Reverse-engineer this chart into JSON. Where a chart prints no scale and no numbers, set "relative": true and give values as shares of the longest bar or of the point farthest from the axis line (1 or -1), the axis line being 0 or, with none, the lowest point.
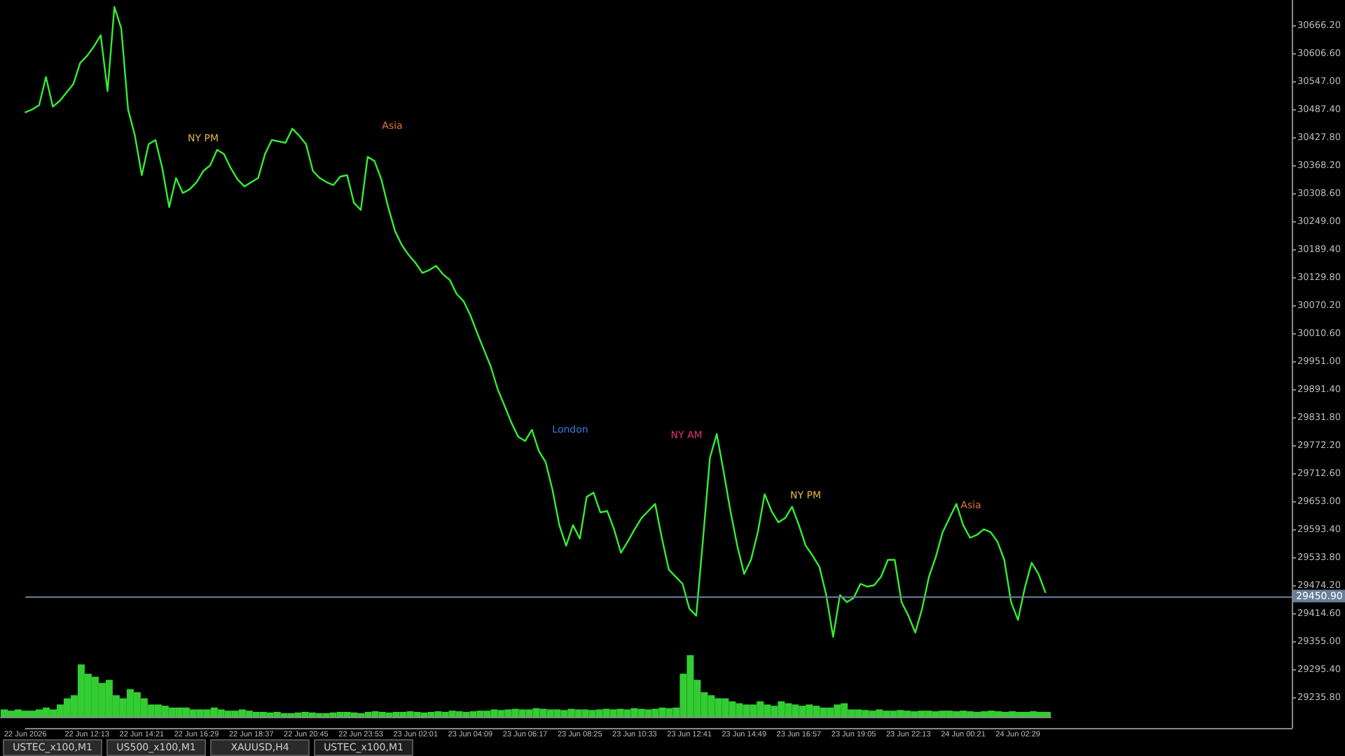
{
  "chart_data": [
    {
      "type": "line",
      "categories": [
        "22 Jun 2026",
        null,
        null,
        null,
        null,
        null,
        null,
        null,
        null,
        "22 Jun 12:13",
        null,
        null,
        null,
        null,
        null,
        null,
        null,
        "22 Jun 14:21",
        null,
        null,
        null,
        null,
        null,
        null,
        null,
        "22 Jun 16:29",
        null,
        null,
        null,
        null,
        null,
        null,
        null,
        "22 Jun 18:37",
        null,
        null,
        null,
        null,
        null,
        null,
        null,
        "22 Jun 20:45",
        null,
        null,
        null,
        null,
        null,
        null,
        null,
        "22 Jun 23:53",
        null,
        null,
        null,
        null,
        null,
        null,
        null,
        "23 Jun 02:01",
        null,
        null,
        null,
        null,
        null,
        null,
        null,
        "23 Jun 04:09",
        null,
        null,
        null,
        null,
        null,
        null,
        null,
        "23 Jun 06:17",
        null,
        null,
        null,
        null,
        null,
        null,
        null,
        "23 Jun 08:25",
        null,
        null,
        null,
        null,
        null,
        null,
        null,
        "23 Jun 10:33",
        null,
        null,
        null,
        null,
        null,
        null,
        null,
        "23 Jun 12:41",
        null,
        null,
        null,
        null,
        null,
        null,
        null,
        "23 Jun 14:49",
        null,
        null,
        null,
        null,
        null,
        null,
        null,
        "23 Jun 16:57",
        null,
        null,
        null,
        null,
        null,
        null,
        null,
        "23 Jun 19:05",
        null,
        null,
        null,
        null,
        null,
        null,
        null,
        "23 Jun 22:13",
        null,
        null,
        null,
        null,
        null,
        null,
        null,
        "24 Jun 00:21",
        null,
        null,
        null,
        null,
        null,
        null,
        null,
        "24 Jun 02:29",
        null,
        null,
        null,
        null,
        null,
        null,
        null,
        null,
        null,
        null,
        null,
        null,
        null,
        null,
        null,
        null,
        null,
        null,
        null,
        null,
        null,
        null,
        null,
        null,
        null,
        null,
        null,
        null,
        null,
        null,
        null,
        null,
        null,
        null,
        null,
        null,
        null,
        null,
        null,
        null
      ],
      "series": [
        {
          "color": "#33ee33",
          "values": [
            30481,
            30487,
            30496,
            30556,
            30493,
            30505,
            30523,
            30541,
            30586,
            30601,
            30621,
            30645,
            30526,
            30705,
            30660,
            30487,
            30431,
            30347,
            30413,
            30422,
            30362,
            30279,
            30341,
            30309,
            30317,
            30332,
            30356,
            30368,
            30401,
            30392,
            30362,
            30338,
            30323,
            30332,
            30341,
            30392,
            30422,
            30419,
            30416,
            30446,
            30431,
            30413,
            30356,
            30341,
            30332,
            30326,
            30344,
            30347,
            30288,
            30273,
            30386,
            30377,
            30338,
            30279,
            30228,
            30198,
            30177,
            30160,
            30139,
            30145,
            30154,
            30136,
            30124,
            30094,
            30079,
            30049,
            30011,
            29975,
            29939,
            29891,
            29856,
            29820,
            29790,
            29781,
            29805,
            29760,
            29736,
            29677,
            29602,
            29558,
            29602,
            29573,
            29662,
            29671,
            29629,
            29632,
            29593,
            29543,
            29567,
            29593,
            29617,
            29632,
            29647,
            29573,
            29507,
            29492,
            29477,
            29424,
            29409,
            29573,
            29745,
            29796,
            29716,
            29632,
            29558,
            29498,
            29528,
            29587,
            29668,
            29632,
            29608,
            29617,
            29641,
            29602,
            29558,
            29537,
            29513,
            29453,
            29364,
            29453,
            29438,
            29447,
            29477,
            29471,
            29474,
            29492,
            29528,
            29528,
            29438,
            29409,
            29373,
            29424,
            29492,
            29534,
            29587,
            29617,
            29647,
            29602,
            29575,
            29581,
            29593,
            29587,
            29567,
            29528,
            29438,
            29400,
            29468,
            29522,
            29498,
            29459,
            null,
            null,
            null,
            null,
            null,
            null,
            null,
            null,
            null,
            null,
            null,
            null,
            null,
            null,
            null,
            null,
            null,
            null,
            null,
            null,
            null,
            null,
            null,
            null,
            null,
            null,
            null,
            null,
            null,
            null,
            null,
            null,
            null,
            null,
            null,
            null
          ]
        }
      ],
      "ylim": [
        29170,
        30720
      ],
      "yticks": [
        {
          "value": 29235.8,
          "label": "29235.80"
        },
        {
          "value": 29295.4,
          "label": "29295.40"
        },
        {
          "value": 29355,
          "label": "29355.00"
        },
        {
          "value": 29414.6,
          "label": "29414.60"
        },
        {
          "value": 29474.2,
          "label": "29474.20"
        },
        {
          "value": 29533.8,
          "label": "29533.80"
        },
        {
          "value": 29593.4,
          "label": "29593.40"
        },
        {
          "value": 29653,
          "label": "29653.00"
        },
        {
          "value": 29712.6,
          "label": "29712.60"
        },
        {
          "value": 29772.2,
          "label": "29772.20"
        },
        {
          "value": 29831.8,
          "label": "29831.80"
        },
        {
          "value": 29891.4,
          "label": "29891.40"
        },
        {
          "value": 29951,
          "label": "29951.00"
        },
        {
          "value": 30010.6,
          "label": "30010.60"
        },
        {
          "value": 30070.2,
          "label": "30070.20"
        },
        {
          "value": 30129.8,
          "label": "30129.80"
        },
        {
          "value": 30189.4,
          "label": "30189.40"
        },
        {
          "value": 30249,
          "label": "30249.00"
        },
        {
          "value": 30308.6,
          "label": "30308.60"
        },
        {
          "value": 30368.2,
          "label": "30368.20"
        },
        {
          "value": 30427.8,
          "label": "30427.80"
        },
        {
          "value": 30487.4,
          "label": "30487.40"
        },
        {
          "value": 30547,
          "label": "30547.00"
        },
        {
          "value": 30606.6,
          "label": "30606.60"
        },
        {
          "value": 30666.2,
          "label": "30666.20"
        }
      ],
      "ref_lines": [
        {
          "axis": "y",
          "value": 29450.9,
          "label": "29450.90",
          "color": "#6a7f99"
        }
      ],
      "grid": false,
      "marker": "none",
      "line_style": "solid",
      "annotations": [
        "Asia",
        "London",
        "NY AM",
        "NY PM",
        "NY PM",
        "Asia",
        "USTEC_x100,M1",
        "US500_x100,M1",
        "XAUUSD,H4",
        "USTEC_x100,M1"
      ]
    },
    {
      "type": "bar",
      "relative": true,
      "color": "#33cc33",
      "categories": [
        null,
        null,
        null,
        null,
        null,
        null,
        null,
        null,
        null,
        null,
        null,
        null,
        null,
        null,
        null,
        null,
        null,
        null,
        null,
        null,
        null,
        null,
        null,
        null,
        null,
        null,
        null,
        null,
        null,
        null,
        null,
        null,
        null,
        null,
        null,
        null,
        null,
        null,
        null,
        null,
        null,
        null,
        null,
        null,
        null,
        null,
        null,
        null,
        null,
        null,
        null,
        null,
        null,
        null,
        null,
        null,
        null,
        null,
        null,
        null,
        null,
        null,
        null,
        null,
        null,
        null,
        null,
        null,
        null,
        null,
        null,
        null,
        null,
        null,
        null,
        null,
        null,
        null,
        null,
        null,
        null,
        null,
        null,
        null,
        null,
        null,
        null,
        null,
        null,
        null,
        null,
        null,
        null,
        null,
        null,
        null,
        null,
        null,
        null,
        null,
        null,
        null,
        null,
        null,
        null,
        null,
        null,
        null,
        null,
        null,
        null,
        null,
        null,
        null,
        null,
        null,
        null,
        null,
        null,
        null,
        null,
        null,
        null,
        null,
        null,
        null,
        null,
        null,
        null,
        null,
        null,
        null,
        null,
        null,
        null,
        null,
        null,
        null,
        null,
        null,
        null,
        null,
        null,
        null,
        null,
        null,
        null,
        null,
        null,
        null
      ],
      "values": [
        0.12,
        0.1,
        0.12,
        0.1,
        0.1,
        0.12,
        0.15,
        0.12,
        0.2,
        0.3,
        0.35,
        0.85,
        0.7,
        0.65,
        0.55,
        0.6,
        0.35,
        0.3,
        0.45,
        0.4,
        0.3,
        0.2,
        0.2,
        0.18,
        0.15,
        0.15,
        0.15,
        0.12,
        0.12,
        0.12,
        0.15,
        0.12,
        0.1,
        0.1,
        0.12,
        0.1,
        0.08,
        0.08,
        0.07,
        0.08,
        0.06,
        0.06,
        0.07,
        0.08,
        0.07,
        0.06,
        0.06,
        0.07,
        0.08,
        0.08,
        0.07,
        0.06,
        0.08,
        0.09,
        0.08,
        0.07,
        0.08,
        0.08,
        0.09,
        0.08,
        0.07,
        0.08,
        0.09,
        0.08,
        0.1,
        0.09,
        0.08,
        0.09,
        0.1,
        0.1,
        0.12,
        0.11,
        0.12,
        0.13,
        0.12,
        0.12,
        0.14,
        0.13,
        0.12,
        0.12,
        0.11,
        0.13,
        0.12,
        0.12,
        0.11,
        0.12,
        0.13,
        0.12,
        0.13,
        0.12,
        0.14,
        0.13,
        0.12,
        0.13,
        0.15,
        0.14,
        0.15,
        0.7,
        1,
        0.6,
        0.4,
        0.35,
        0.3,
        0.3,
        0.25,
        0.22,
        0.2,
        0.2,
        0.25,
        0.2,
        0.18,
        0.25,
        0.22,
        0.2,
        0.18,
        0.2,
        0.18,
        0.15,
        0.15,
        0.2,
        0.22,
        0.12,
        0.12,
        0.11,
        0.1,
        0.12,
        0.1,
        0.1,
        0.11,
        0.1,
        0.09,
        0.1,
        0.1,
        0.09,
        0.1,
        0.1,
        0.09,
        0.1,
        0.09,
        0.08,
        0.09,
        0.1,
        0.09,
        0.08,
        0.09,
        0.08,
        0.08,
        0.09,
        0.08,
        0.08
      ]
    }
  ]
}
